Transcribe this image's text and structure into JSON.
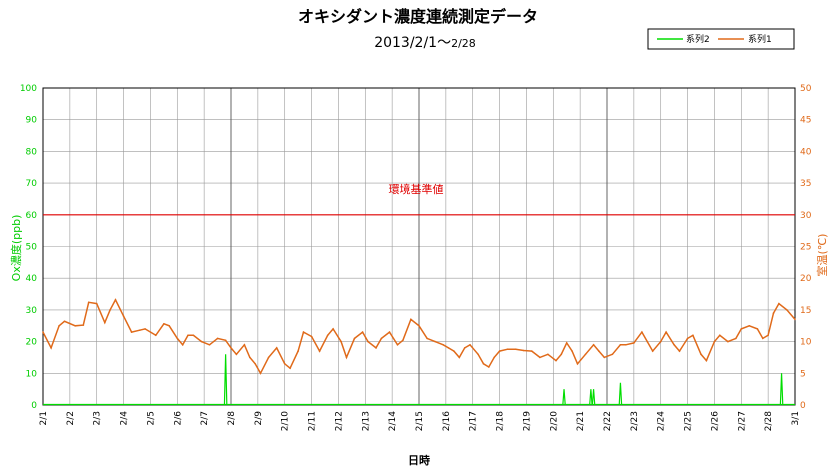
{
  "chart_data": {
    "type": "line",
    "title": "オキシダント濃度連続測定データ",
    "subtitle_main": "2013/2/1～",
    "subtitle_end": "2/28",
    "xlabel": "日時",
    "ylabel_left": "Ox濃度(ppb)",
    "ylabel_right": "室温(℃)",
    "ylim_left": [
      0,
      100
    ],
    "ylim_right": [
      0,
      50
    ],
    "yticks_left": [
      "0",
      "10",
      "20",
      "30",
      "40",
      "50",
      "60",
      "70",
      "80",
      "90",
      "100"
    ],
    "yticks_right": [
      "0",
      "5",
      "10",
      "15",
      "20",
      "25",
      "30",
      "35",
      "40",
      "45",
      "50"
    ],
    "x_tick_labels": [
      "2/1",
      "2/2",
      "2/3",
      "2/4",
      "2/5",
      "2/6",
      "2/7",
      "2/8",
      "2/9",
      "2/10",
      "2/11",
      "2/12",
      "2/13",
      "2/14",
      "2/15",
      "2/16",
      "2/17",
      "2/18",
      "2/19",
      "2/20",
      "2/21",
      "2/22",
      "2/23",
      "2/24",
      "2/25",
      "2/26",
      "2/27",
      "2/28",
      "3/1"
    ],
    "grid": true,
    "legend_position": "top-right",
    "reference_line": {
      "label": "環境基準値",
      "value": 60,
      "color": "#e00000"
    },
    "series": [
      {
        "name": "系列2",
        "axis": "left",
        "color": "#00dd00",
        "spikes": [
          {
            "day": 6.8,
            "value": 16
          },
          {
            "day": 19.4,
            "value": 5
          },
          {
            "day": 20.4,
            "value": 5
          },
          {
            "day": 20.5,
            "value": 5
          },
          {
            "day": 21.5,
            "value": 7
          },
          {
            "day": 27.5,
            "value": 10
          }
        ]
      },
      {
        "name": "系列1",
        "axis": "right",
        "color": "#e06a1a",
        "points": [
          [
            0.0,
            11.5
          ],
          [
            0.3,
            9.0
          ],
          [
            0.6,
            12.5
          ],
          [
            0.8,
            13.2
          ],
          [
            1.2,
            12.5
          ],
          [
            1.5,
            12.6
          ],
          [
            1.7,
            16.2
          ],
          [
            2.0,
            16.0
          ],
          [
            2.3,
            13.0
          ],
          [
            2.5,
            15.0
          ],
          [
            2.7,
            16.6
          ],
          [
            3.0,
            14.0
          ],
          [
            3.3,
            11.5
          ],
          [
            3.6,
            11.8
          ],
          [
            3.8,
            12.0
          ],
          [
            4.2,
            11.0
          ],
          [
            4.5,
            12.8
          ],
          [
            4.7,
            12.5
          ],
          [
            5.0,
            10.5
          ],
          [
            5.2,
            9.5
          ],
          [
            5.4,
            11.0
          ],
          [
            5.6,
            11.0
          ],
          [
            5.9,
            10.0
          ],
          [
            6.2,
            9.5
          ],
          [
            6.5,
            10.5
          ],
          [
            6.8,
            10.2
          ],
          [
            7.0,
            9.0
          ],
          [
            7.2,
            8.0
          ],
          [
            7.5,
            9.5
          ],
          [
            7.7,
            7.5
          ],
          [
            7.9,
            6.5
          ],
          [
            8.1,
            5.0
          ],
          [
            8.4,
            7.5
          ],
          [
            8.7,
            9.0
          ],
          [
            9.0,
            6.5
          ],
          [
            9.2,
            5.8
          ],
          [
            9.5,
            8.5
          ],
          [
            9.7,
            11.5
          ],
          [
            10.0,
            10.8
          ],
          [
            10.3,
            8.5
          ],
          [
            10.6,
            11.0
          ],
          [
            10.8,
            12.0
          ],
          [
            11.1,
            10.0
          ],
          [
            11.3,
            7.5
          ],
          [
            11.6,
            10.5
          ],
          [
            11.9,
            11.5
          ],
          [
            12.1,
            10.0
          ],
          [
            12.4,
            9.0
          ],
          [
            12.6,
            10.5
          ],
          [
            12.9,
            11.5
          ],
          [
            13.2,
            9.5
          ],
          [
            13.4,
            10.2
          ],
          [
            13.7,
            13.5
          ],
          [
            14.0,
            12.5
          ],
          [
            14.3,
            10.5
          ],
          [
            14.6,
            10.0
          ],
          [
            14.9,
            9.5
          ],
          [
            15.1,
            9.0
          ],
          [
            15.3,
            8.5
          ],
          [
            15.5,
            7.5
          ],
          [
            15.7,
            9.0
          ],
          [
            15.9,
            9.5
          ],
          [
            16.2,
            8.0
          ],
          [
            16.4,
            6.5
          ],
          [
            16.6,
            6.0
          ],
          [
            16.8,
            7.5
          ],
          [
            17.0,
            8.5
          ],
          [
            17.3,
            8.8
          ],
          [
            17.6,
            8.8
          ],
          [
            17.9,
            8.6
          ],
          [
            18.2,
            8.5
          ],
          [
            18.5,
            7.5
          ],
          [
            18.8,
            8.0
          ],
          [
            19.1,
            7.0
          ],
          [
            19.3,
            8.0
          ],
          [
            19.5,
            9.8
          ],
          [
            19.7,
            8.5
          ],
          [
            19.9,
            6.5
          ],
          [
            20.2,
            8.0
          ],
          [
            20.5,
            9.5
          ],
          [
            20.7,
            8.5
          ],
          [
            20.9,
            7.5
          ],
          [
            21.2,
            8.0
          ],
          [
            21.5,
            9.5
          ],
          [
            21.7,
            9.5
          ],
          [
            22.0,
            9.8
          ],
          [
            22.3,
            11.5
          ],
          [
            22.5,
            10.0
          ],
          [
            22.7,
            8.5
          ],
          [
            23.0,
            10.0
          ],
          [
            23.2,
            11.5
          ],
          [
            23.5,
            9.5
          ],
          [
            23.7,
            8.5
          ],
          [
            24.0,
            10.5
          ],
          [
            24.2,
            11.0
          ],
          [
            24.5,
            8.0
          ],
          [
            24.7,
            7.0
          ],
          [
            25.0,
            10.0
          ],
          [
            25.2,
            11.0
          ],
          [
            25.5,
            10.0
          ],
          [
            25.8,
            10.5
          ],
          [
            26.0,
            12.0
          ],
          [
            26.3,
            12.5
          ],
          [
            26.6,
            12.0
          ],
          [
            26.8,
            10.5
          ],
          [
            27.0,
            11.0
          ],
          [
            27.2,
            14.5
          ],
          [
            27.4,
            16.0
          ],
          [
            27.7,
            15.0
          ],
          [
            28.0,
            13.5
          ]
        ]
      }
    ]
  }
}
